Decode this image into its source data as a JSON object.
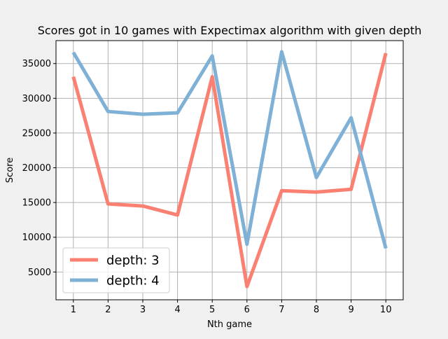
{
  "chart_data": {
    "type": "line",
    "title": "Scores got in 10 games with Expectimax algorithm with given depth",
    "xlabel": "Nth game",
    "ylabel": "Score",
    "x": [
      1,
      2,
      3,
      4,
      5,
      6,
      7,
      8,
      9,
      10
    ],
    "xlim": [
      0.5,
      10.5
    ],
    "ylim": [
      1000,
      38300
    ],
    "yticks": [
      5000,
      10000,
      15000,
      20000,
      25000,
      30000,
      35000
    ],
    "grid": true,
    "legend_position": "lower-left",
    "series": [
      {
        "name": "depth: 3",
        "color": "#fa8072",
        "values": [
          33100,
          14800,
          14500,
          13200,
          33100,
          2900,
          16700,
          16500,
          16900,
          36500
        ]
      },
      {
        "name": "depth: 4",
        "color": "#7fb0d6",
        "values": [
          36600,
          28100,
          27700,
          27900,
          36100,
          9000,
          36700,
          18600,
          27200,
          8400
        ]
      }
    ]
  }
}
